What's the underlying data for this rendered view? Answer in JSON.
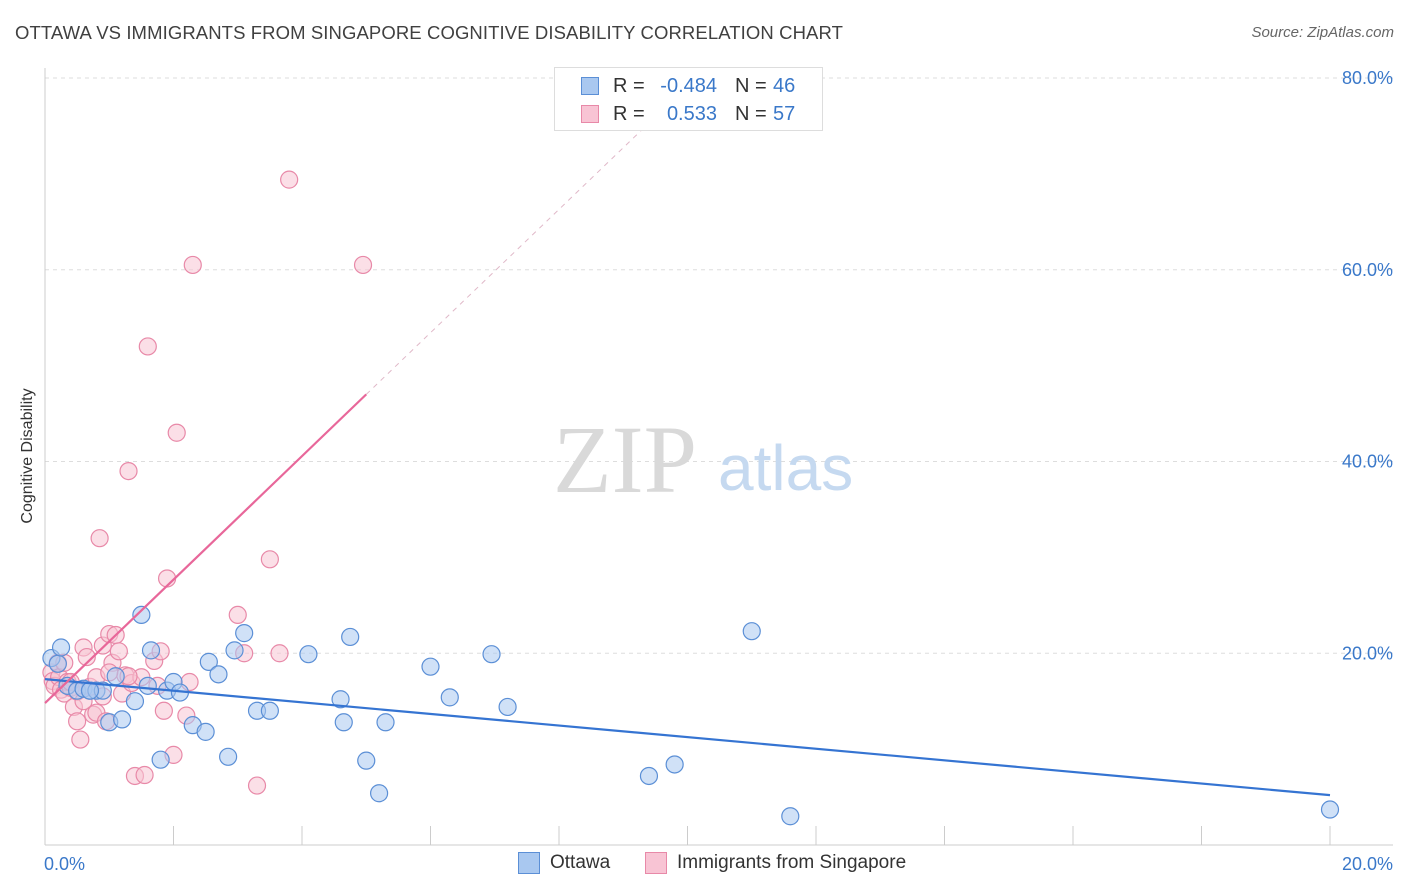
{
  "title": "OTTAWA VS IMMIGRANTS FROM SINGAPORE COGNITIVE DISABILITY CORRELATION CHART",
  "source": "Source: ZipAtlas.com",
  "watermark": {
    "zip": "ZIP",
    "atlas": "atlas"
  },
  "legend_top": {
    "rows": [
      {
        "r_label": "R =",
        "r_value": "-0.484",
        "n_label": "N =",
        "n_value": "46",
        "color": "#a9c8f0",
        "border": "#5b8fd6"
      },
      {
        "r_label": "R =",
        "r_value": "0.533",
        "n_label": "N =",
        "n_value": "57",
        "color": "#f8c4d4",
        "border": "#e889a8"
      }
    ]
  },
  "legend_bottom": [
    {
      "label": "Ottawa",
      "color": "#a9c8f0",
      "border": "#5b8fd6"
    },
    {
      "label": "Immigrants from Singapore",
      "color": "#f8c4d4",
      "border": "#e889a8"
    }
  ],
  "colors": {
    "ottawa_fill": "#a9c8f0",
    "ottawa_stroke": "#5b8fd6",
    "ottawa_line": "#3574d2",
    "singapore_fill": "#f8c4d4",
    "singapore_stroke": "#e889a8",
    "singapore_line": "#e8679a",
    "tick": "#3a78c9",
    "grid": "#dddddd"
  },
  "chart_data": {
    "type": "scatter",
    "title": "OTTAWA VS IMMIGRANTS FROM SINGAPORE COGNITIVE DISABILITY CORRELATION CHART",
    "xlabel": "",
    "ylabel": "Cognitive Disability",
    "xlim": [
      0,
      20
    ],
    "ylim": [
      0,
      80
    ],
    "x_tick_labels": [
      "0.0%",
      "20.0%"
    ],
    "y_ticks": [
      20,
      40,
      60,
      80
    ],
    "y_tick_labels": [
      "20.0%",
      "40.0%",
      "60.0%",
      "80.0%"
    ],
    "grid": true,
    "legend_position": "top-center",
    "series": [
      {
        "name": "Ottawa",
        "r": -0.484,
        "n": 46,
        "trend": {
          "x0": 0,
          "y0": 17.3,
          "x1": 20,
          "y1": 5.2
        },
        "points": [
          [
            0.1,
            19.5
          ],
          [
            0.2,
            18.9
          ],
          [
            0.25,
            20.6
          ],
          [
            0.35,
            16.6
          ],
          [
            0.5,
            16.1
          ],
          [
            0.6,
            16.3
          ],
          [
            0.7,
            16.1
          ],
          [
            0.8,
            16.1
          ],
          [
            0.9,
            16.1
          ],
          [
            1.0,
            12.8
          ],
          [
            1.1,
            17.6
          ],
          [
            1.2,
            13.1
          ],
          [
            1.4,
            15.0
          ],
          [
            1.5,
            24.0
          ],
          [
            1.6,
            16.6
          ],
          [
            1.65,
            20.3
          ],
          [
            1.8,
            8.9
          ],
          [
            1.9,
            16.1
          ],
          [
            2.0,
            17.0
          ],
          [
            2.1,
            15.9
          ],
          [
            2.3,
            12.5
          ],
          [
            2.5,
            11.8
          ],
          [
            2.55,
            19.1
          ],
          [
            2.7,
            17.8
          ],
          [
            2.85,
            9.2
          ],
          [
            2.95,
            20.3
          ],
          [
            3.1,
            22.1
          ],
          [
            3.3,
            14.0
          ],
          [
            3.5,
            14.0
          ],
          [
            4.1,
            19.9
          ],
          [
            4.6,
            15.2
          ],
          [
            4.65,
            12.8
          ],
          [
            4.75,
            21.7
          ],
          [
            5.0,
            8.8
          ],
          [
            5.2,
            5.4
          ],
          [
            5.3,
            12.8
          ],
          [
            6.0,
            18.6
          ],
          [
            6.3,
            15.4
          ],
          [
            6.95,
            19.9
          ],
          [
            7.2,
            14.4
          ],
          [
            9.4,
            7.2
          ],
          [
            9.8,
            8.4
          ],
          [
            11.0,
            22.3
          ],
          [
            11.6,
            3.0
          ],
          [
            20.0,
            3.7
          ],
          [
            0.7,
            16.1
          ]
        ]
      },
      {
        "name": "Immigrants from Singapore",
        "r": 0.533,
        "n": 57,
        "trend": {
          "x0": 0,
          "y0": 14.8,
          "x1": 5.0,
          "y1": 47.0
        },
        "trend_dashed": {
          "x0": 5.0,
          "y0": 47.0,
          "x1": 9.4,
          "y1": 75.3
        },
        "points": [
          [
            0.1,
            18.0
          ],
          [
            0.12,
            17.1
          ],
          [
            0.15,
            16.6
          ],
          [
            0.2,
            19.0
          ],
          [
            0.22,
            17.5
          ],
          [
            0.25,
            16.2
          ],
          [
            0.3,
            15.8
          ],
          [
            0.35,
            17.0
          ],
          [
            0.4,
            16.4
          ],
          [
            0.45,
            14.4
          ],
          [
            0.5,
            12.9
          ],
          [
            0.55,
            11.0
          ],
          [
            0.6,
            20.6
          ],
          [
            0.65,
            19.6
          ],
          [
            0.7,
            16.5
          ],
          [
            0.75,
            13.6
          ],
          [
            0.8,
            13.8
          ],
          [
            0.85,
            32.0
          ],
          [
            0.9,
            20.8
          ],
          [
            0.95,
            12.9
          ],
          [
            1.0,
            22.0
          ],
          [
            1.05,
            19.0
          ],
          [
            1.1,
            21.9
          ],
          [
            1.15,
            20.2
          ],
          [
            1.2,
            15.8
          ],
          [
            1.25,
            17.7
          ],
          [
            1.3,
            39.0
          ],
          [
            1.35,
            16.9
          ],
          [
            1.4,
            7.2
          ],
          [
            1.5,
            17.5
          ],
          [
            1.55,
            7.3
          ],
          [
            1.6,
            52.0
          ],
          [
            1.7,
            19.2
          ],
          [
            1.75,
            16.6
          ],
          [
            1.8,
            20.2
          ],
          [
            1.85,
            14.0
          ],
          [
            1.9,
            27.8
          ],
          [
            2.0,
            9.4
          ],
          [
            2.05,
            43.0
          ],
          [
            2.2,
            13.5
          ],
          [
            2.25,
            17.0
          ],
          [
            2.3,
            60.5
          ],
          [
            3.0,
            24.0
          ],
          [
            3.1,
            20.0
          ],
          [
            3.3,
            6.2
          ],
          [
            3.5,
            29.8
          ],
          [
            3.65,
            20.0
          ],
          [
            3.8,
            69.4
          ],
          [
            4.95,
            60.5
          ],
          [
            0.3,
            19.0
          ],
          [
            0.4,
            17.0
          ],
          [
            0.5,
            16.0
          ],
          [
            0.6,
            15.0
          ],
          [
            0.8,
            17.5
          ],
          [
            1.0,
            18.0
          ],
          [
            1.3,
            17.6
          ],
          [
            0.9,
            15.5
          ]
        ]
      }
    ]
  }
}
